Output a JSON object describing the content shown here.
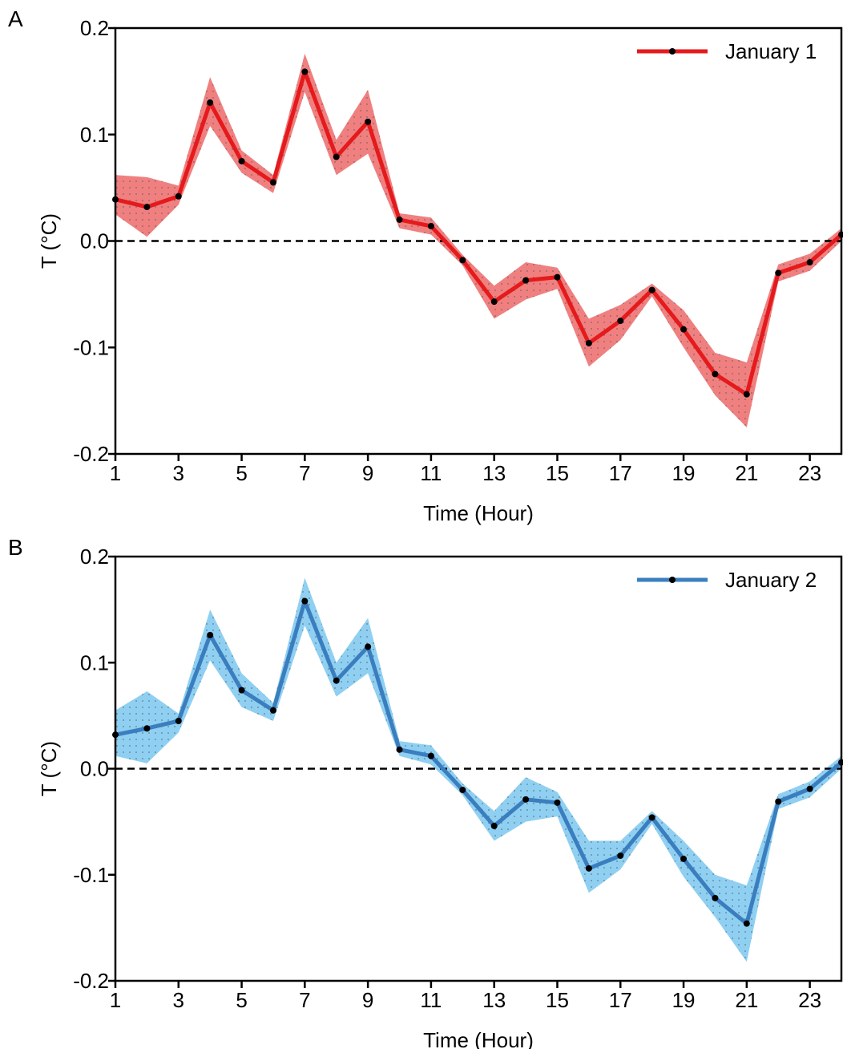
{
  "chart_data": [
    {
      "type": "line",
      "panel": "A",
      "xlabel": "Time (Hour)",
      "ylabel": "T (°C)",
      "x": [
        1,
        2,
        3,
        4,
        5,
        6,
        7,
        8,
        9,
        10,
        11,
        12,
        13,
        14,
        15,
        16,
        17,
        18,
        19,
        20,
        21,
        22,
        23,
        24
      ],
      "series": [
        {
          "name": "January 1",
          "color": "#e41a1c",
          "band_color": "#f08080",
          "values": [
            0.039,
            0.032,
            0.042,
            0.13,
            0.075,
            0.055,
            0.159,
            0.079,
            0.112,
            0.02,
            0.014,
            -0.018,
            -0.057,
            -0.037,
            -0.034,
            -0.096,
            -0.075,
            -0.046,
            -0.083,
            -0.125,
            -0.144,
            -0.03,
            -0.02,
            0.006
          ],
          "upper": [
            0.062,
            0.06,
            0.052,
            0.154,
            0.085,
            0.062,
            0.176,
            0.095,
            0.142,
            0.026,
            0.022,
            -0.013,
            -0.042,
            -0.02,
            -0.025,
            -0.073,
            -0.06,
            -0.04,
            -0.065,
            -0.105,
            -0.114,
            -0.022,
            -0.012,
            0.012
          ],
          "lower": [
            0.025,
            0.004,
            0.034,
            0.108,
            0.064,
            0.045,
            0.14,
            0.062,
            0.082,
            0.012,
            0.006,
            -0.023,
            -0.073,
            -0.055,
            -0.045,
            -0.118,
            -0.093,
            -0.052,
            -0.1,
            -0.145,
            -0.175,
            -0.038,
            -0.028,
            0.0
          ]
        }
      ],
      "xlim": [
        1,
        24
      ],
      "xticks": [
        1,
        3,
        5,
        7,
        9,
        11,
        13,
        15,
        17,
        19,
        21,
        23
      ],
      "ylim": [
        -0.2,
        0.2
      ],
      "yticks": [
        -0.2,
        -0.1,
        {
          "value": 0,
          "label": "0.0"
        },
        0.1,
        0.2
      ],
      "reference_line": 0,
      "legend": "upper right"
    },
    {
      "type": "line",
      "panel": "B",
      "xlabel": "Time (Hour)",
      "ylabel": "T (°C)",
      "x": [
        1,
        2,
        3,
        4,
        5,
        6,
        7,
        8,
        9,
        10,
        11,
        12,
        13,
        14,
        15,
        16,
        17,
        18,
        19,
        20,
        21,
        22,
        23,
        24
      ],
      "series": [
        {
          "name": "January 2",
          "color": "#3a7ebf",
          "band_color": "#8fd0f2",
          "values": [
            0.032,
            0.038,
            0.045,
            0.126,
            0.074,
            0.055,
            0.158,
            0.083,
            0.115,
            0.018,
            0.012,
            -0.02,
            -0.054,
            -0.029,
            -0.032,
            -0.094,
            -0.082,
            -0.046,
            -0.085,
            -0.122,
            -0.146,
            -0.031,
            -0.019,
            0.006
          ],
          "upper": [
            0.055,
            0.073,
            0.052,
            0.15,
            0.09,
            0.062,
            0.18,
            0.1,
            0.142,
            0.026,
            0.022,
            -0.014,
            -0.04,
            -0.008,
            -0.022,
            -0.068,
            -0.068,
            -0.04,
            -0.068,
            -0.1,
            -0.11,
            -0.024,
            -0.012,
            0.012
          ],
          "lower": [
            0.012,
            0.005,
            0.034,
            0.102,
            0.058,
            0.045,
            0.135,
            0.068,
            0.09,
            0.012,
            0.004,
            -0.025,
            -0.068,
            -0.05,
            -0.045,
            -0.117,
            -0.095,
            -0.052,
            -0.102,
            -0.14,
            -0.182,
            -0.038,
            -0.027,
            0.0
          ]
        }
      ],
      "xlim": [
        1,
        24
      ],
      "xticks": [
        1,
        3,
        5,
        7,
        9,
        11,
        13,
        15,
        17,
        19,
        21,
        23
      ],
      "ylim": [
        -0.2,
        0.2
      ],
      "yticks": [
        -0.2,
        -0.1,
        {
          "value": 0,
          "label": "0.0"
        },
        0.1,
        0.2
      ],
      "reference_line": 0,
      "legend": "upper right"
    }
  ]
}
